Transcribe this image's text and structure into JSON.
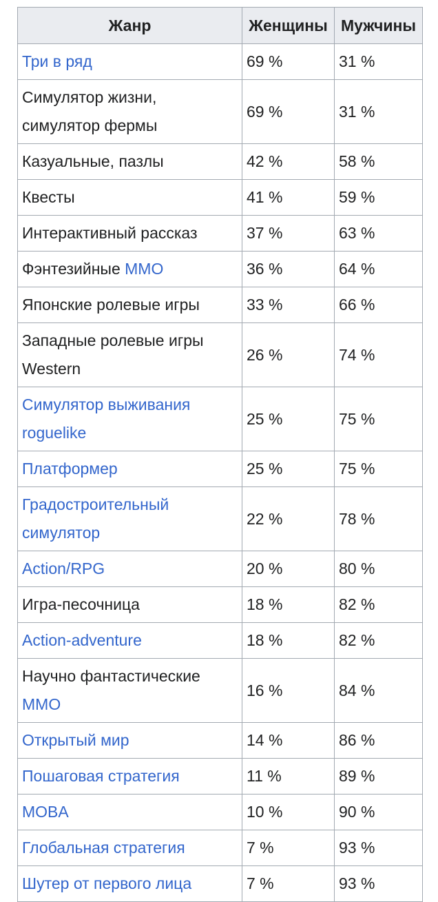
{
  "headers": {
    "genre": "Жанр",
    "women": "Женщины",
    "men": "Мужчины"
  },
  "rows": [
    {
      "parts": [
        {
          "text": "Три в ряд",
          "link": true
        }
      ],
      "women": "69 %",
      "men": "31 %"
    },
    {
      "parts": [
        {
          "text": "Симулятор жизни, симулятор фермы",
          "link": false
        }
      ],
      "women": "69 %",
      "men": "31 %"
    },
    {
      "parts": [
        {
          "text": "Казуальные, пазлы",
          "link": false
        }
      ],
      "women": "42 %",
      "men": "58 %"
    },
    {
      "parts": [
        {
          "text": "Квесты",
          "link": false
        }
      ],
      "women": "41 %",
      "men": "59 %"
    },
    {
      "parts": [
        {
          "text": "Интерактивный рассказ",
          "link": false
        }
      ],
      "women": "37 %",
      "men": "63 %"
    },
    {
      "parts": [
        {
          "text": "Фэнтезийные ",
          "link": false
        },
        {
          "text": "MMO",
          "link": true
        }
      ],
      "women": "36 %",
      "men": "64 %"
    },
    {
      "parts": [
        {
          "text": "Японские ролевые игры",
          "link": false
        }
      ],
      "women": "33 %",
      "men": "66 %"
    },
    {
      "parts": [
        {
          "text": "Западные ролевые игры Western",
          "link": false
        }
      ],
      "women": "26 %",
      "men": "74 %"
    },
    {
      "parts": [
        {
          "text": "Симулятор выживания roguelike",
          "link": true
        }
      ],
      "women": "25 %",
      "men": "75 %"
    },
    {
      "parts": [
        {
          "text": "Платформер",
          "link": true
        }
      ],
      "women": "25 %",
      "men": "75 %"
    },
    {
      "parts": [
        {
          "text": "Градостроительный симулятор",
          "link": true
        }
      ],
      "women": "22 %",
      "men": "78 %"
    },
    {
      "parts": [
        {
          "text": "Action/RPG",
          "link": true
        }
      ],
      "women": "20 %",
      "men": "80 %"
    },
    {
      "parts": [
        {
          "text": "Игра-песочница",
          "link": false
        }
      ],
      "women": "18 %",
      "men": "82 %"
    },
    {
      "parts": [
        {
          "text": "Action-adventure",
          "link": true
        }
      ],
      "women": "18 %",
      "men": "82 %"
    },
    {
      "parts": [
        {
          "text": "Научно фантастические ",
          "link": false
        },
        {
          "text": "MMO",
          "link": true
        }
      ],
      "women": "16 %",
      "men": "84 %"
    },
    {
      "parts": [
        {
          "text": "Открытый мир",
          "link": true
        }
      ],
      "women": "14 %",
      "men": "86 %"
    },
    {
      "parts": [
        {
          "text": "Пошаговая стратегия",
          "link": true
        }
      ],
      "women": "11 %",
      "men": "89 %"
    },
    {
      "parts": [
        {
          "text": "MOBA",
          "link": true
        }
      ],
      "women": "10 %",
      "men": "90 %"
    },
    {
      "parts": [
        {
          "text": "Глобальная стратегия",
          "link": true
        }
      ],
      "women": "7 %",
      "men": "93 %"
    },
    {
      "parts": [
        {
          "text": "Шутер от первого лица",
          "link": true
        }
      ],
      "women": "7 %",
      "men": "93 %"
    }
  ]
}
